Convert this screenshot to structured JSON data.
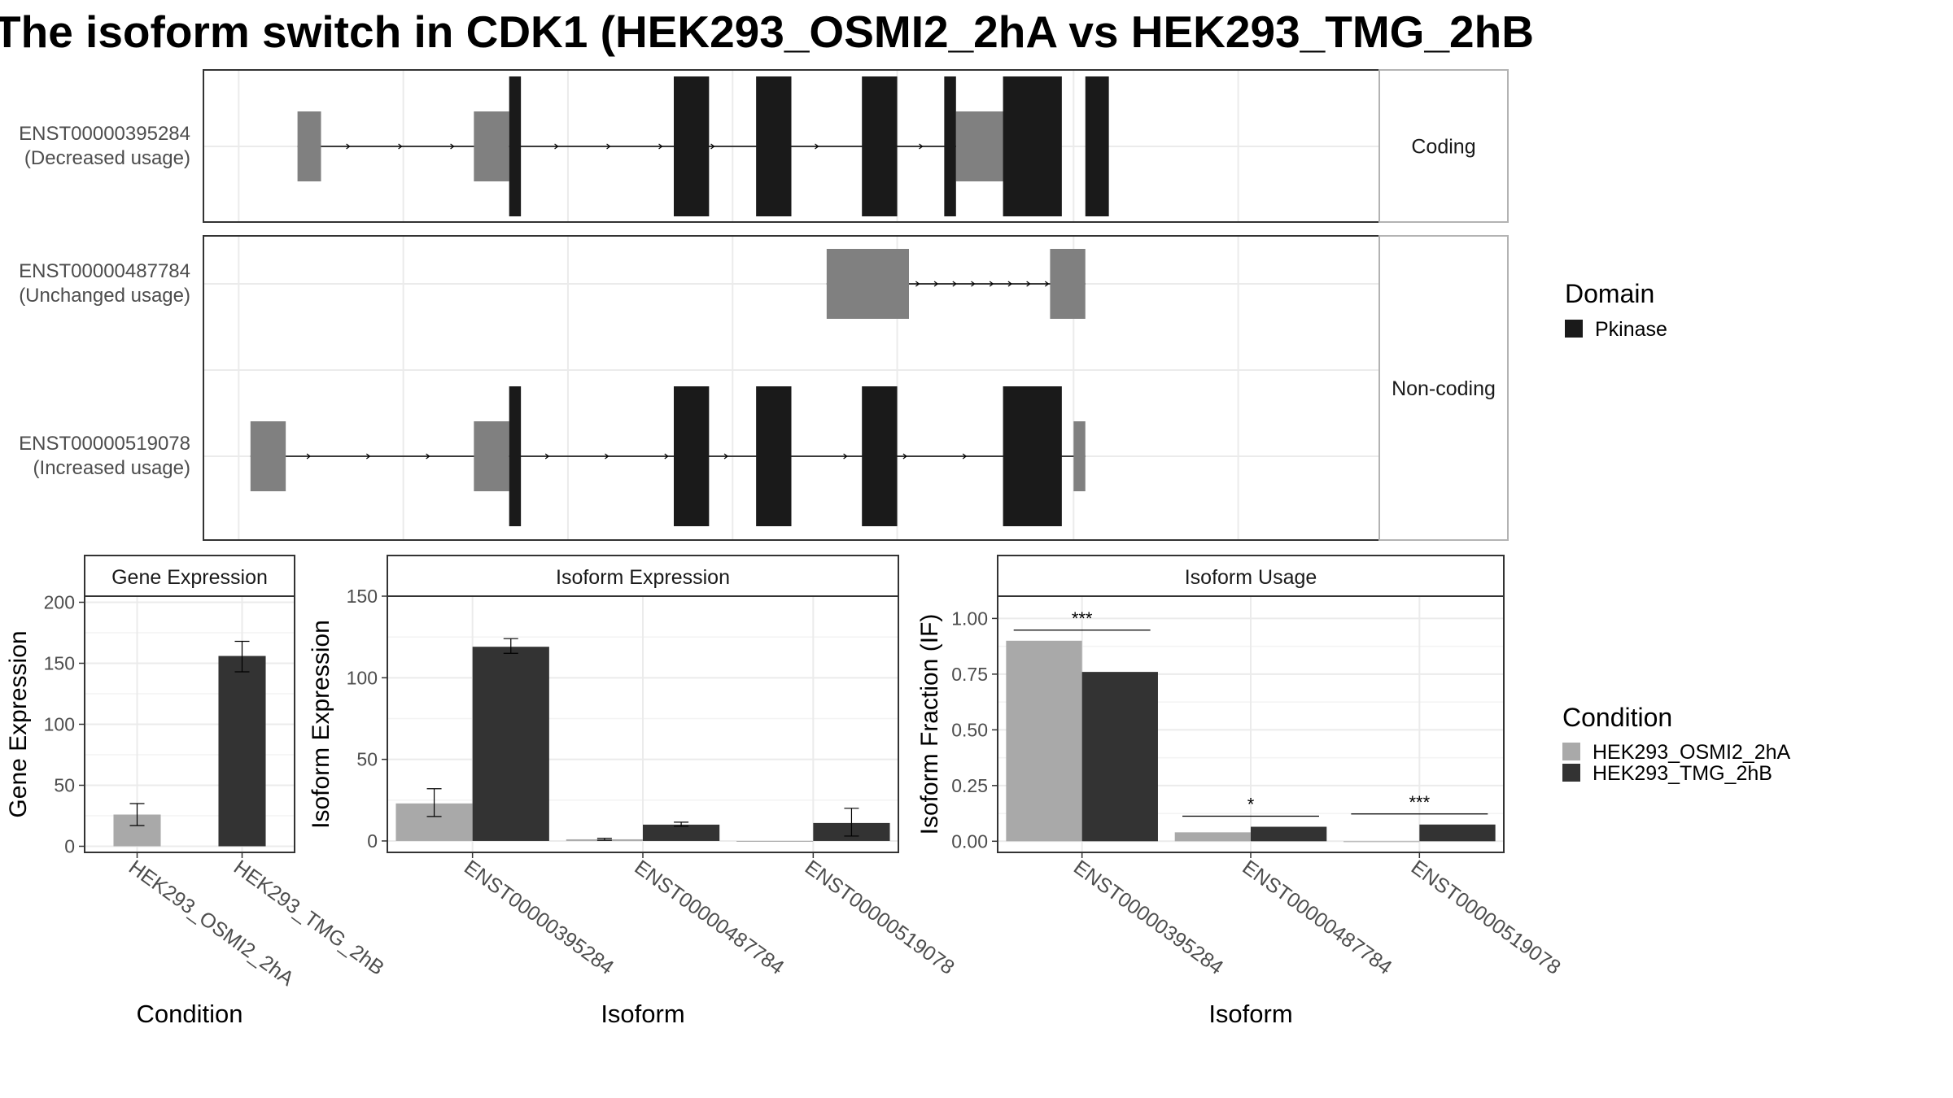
{
  "title": "The isoform switch in CDK1 (HEK293_OSMI2_2hA vs HEK293_TMG_2hB",
  "colors": {
    "domain": "#1a1a1a",
    "utr": "#808080",
    "cond_a": "#a9a9a9",
    "cond_b": "#333333",
    "grid": "#ebebeb",
    "strip_bg": "#ffffff",
    "panel_border": "#333333"
  },
  "chart_data": [
    {
      "type": "gene_structure",
      "panels": [
        {
          "strip": "Coding",
          "transcripts": [
            {
              "id": "ENST00000395284",
              "label": "ENST00000395284",
              "usage": "(Decreased usage)",
              "utr_blocks": [
                [
                  0.08,
                  0.1
                ],
                [
                  0.23,
                  0.26
                ],
                [
                  0.64,
                  0.7
                ]
              ],
              "cds_blocks": [
                [
                  0.26,
                  0.27
                ],
                [
                  0.4,
                  0.43
                ],
                [
                  0.47,
                  0.5
                ],
                [
                  0.56,
                  0.59
                ],
                [
                  0.68,
                  0.73
                ],
                [
                  0.75,
                  0.77
                ],
                [
                  0.63,
                  0.64
                ]
              ],
              "span": [
                0.08,
                0.7
              ]
            }
          ]
        },
        {
          "strip": "Non-coding",
          "transcripts": [
            {
              "id": "ENST00000487784",
              "label": "ENST00000487784",
              "usage": "(Unchanged usage)",
              "utr_blocks": [
                [
                  0.53,
                  0.6
                ],
                [
                  0.72,
                  0.75
                ]
              ],
              "cds_blocks": [],
              "span": [
                0.53,
                0.75
              ]
            },
            {
              "id": "ENST00000519078",
              "label": "ENST00000519078",
              "usage": "(Increased usage)",
              "utr_blocks": [
                [
                  0.04,
                  0.07
                ],
                [
                  0.23,
                  0.26
                ],
                [
                  0.74,
                  0.75
                ]
              ],
              "cds_blocks": [
                [
                  0.26,
                  0.27
                ],
                [
                  0.4,
                  0.43
                ],
                [
                  0.47,
                  0.5
                ],
                [
                  0.56,
                  0.59
                ],
                [
                  0.68,
                  0.73
                ]
              ],
              "span": [
                0.04,
                0.75
              ]
            }
          ]
        }
      ],
      "legend": {
        "title": "Domain",
        "entries": [
          {
            "label": "Pkinase",
            "color": "#1a1a1a"
          }
        ]
      }
    },
    {
      "type": "bar",
      "strip": "Gene Expression",
      "xlabel": "Condition",
      "ylabel": "Gene Expression",
      "categories": [
        "HEK293_OSMI2_2hA",
        "HEK293_TMG_2hB"
      ],
      "values": [
        26,
        156
      ],
      "errors": [
        [
          17,
          35
        ],
        [
          143,
          168
        ]
      ],
      "ylim": [
        -5,
        205
      ],
      "yticks": [
        0,
        50,
        100,
        150,
        200
      ]
    },
    {
      "type": "bar",
      "strip": "Isoform Expression",
      "xlabel": "Isoform",
      "ylabel": "Isoform Expression",
      "categories": [
        "ENST00000395284",
        "ENST00000487784",
        "ENST00000519078"
      ],
      "series": [
        {
          "name": "HEK293_OSMI2_2hA",
          "values": [
            23,
            1,
            0
          ],
          "errors": [
            [
              15,
              32
            ],
            [
              0.4,
              1.6
            ],
            [
              0,
              0
            ]
          ]
        },
        {
          "name": "HEK293_TMG_2hB",
          "values": [
            119,
            10,
            11
          ],
          "errors": [
            [
              115,
              124
            ],
            [
              9,
              11.5
            ],
            [
              3,
              20
            ]
          ]
        }
      ],
      "ylim": [
        -7,
        150
      ],
      "yticks": [
        0,
        50,
        100,
        150
      ]
    },
    {
      "type": "bar",
      "strip": "Isoform Usage",
      "xlabel": "Isoform",
      "ylabel": "Isoform Fraction (IF)",
      "categories": [
        "ENST00000395284",
        "ENST00000487784",
        "ENST00000519078"
      ],
      "series": [
        {
          "name": "HEK293_OSMI2_2hA",
          "values": [
            0.9,
            0.04,
            0.0
          ]
        },
        {
          "name": "HEK293_TMG_2hB",
          "values": [
            0.76,
            0.065,
            0.075
          ]
        }
      ],
      "significance": [
        "***",
        "*",
        "***"
      ],
      "ylim": [
        -0.05,
        1.1
      ],
      "yticks": [
        0,
        0.25,
        0.5,
        0.75,
        1.0
      ],
      "ytick_labels": [
        "0.00",
        "0.25",
        "0.50",
        "0.75",
        "1.00"
      ]
    }
  ],
  "condition_legend": {
    "title": "Condition",
    "entries": [
      {
        "label": "HEK293_OSMI2_2hA",
        "color": "#a9a9a9"
      },
      {
        "label": "HEK293_TMG_2hB",
        "color": "#333333"
      }
    ]
  }
}
